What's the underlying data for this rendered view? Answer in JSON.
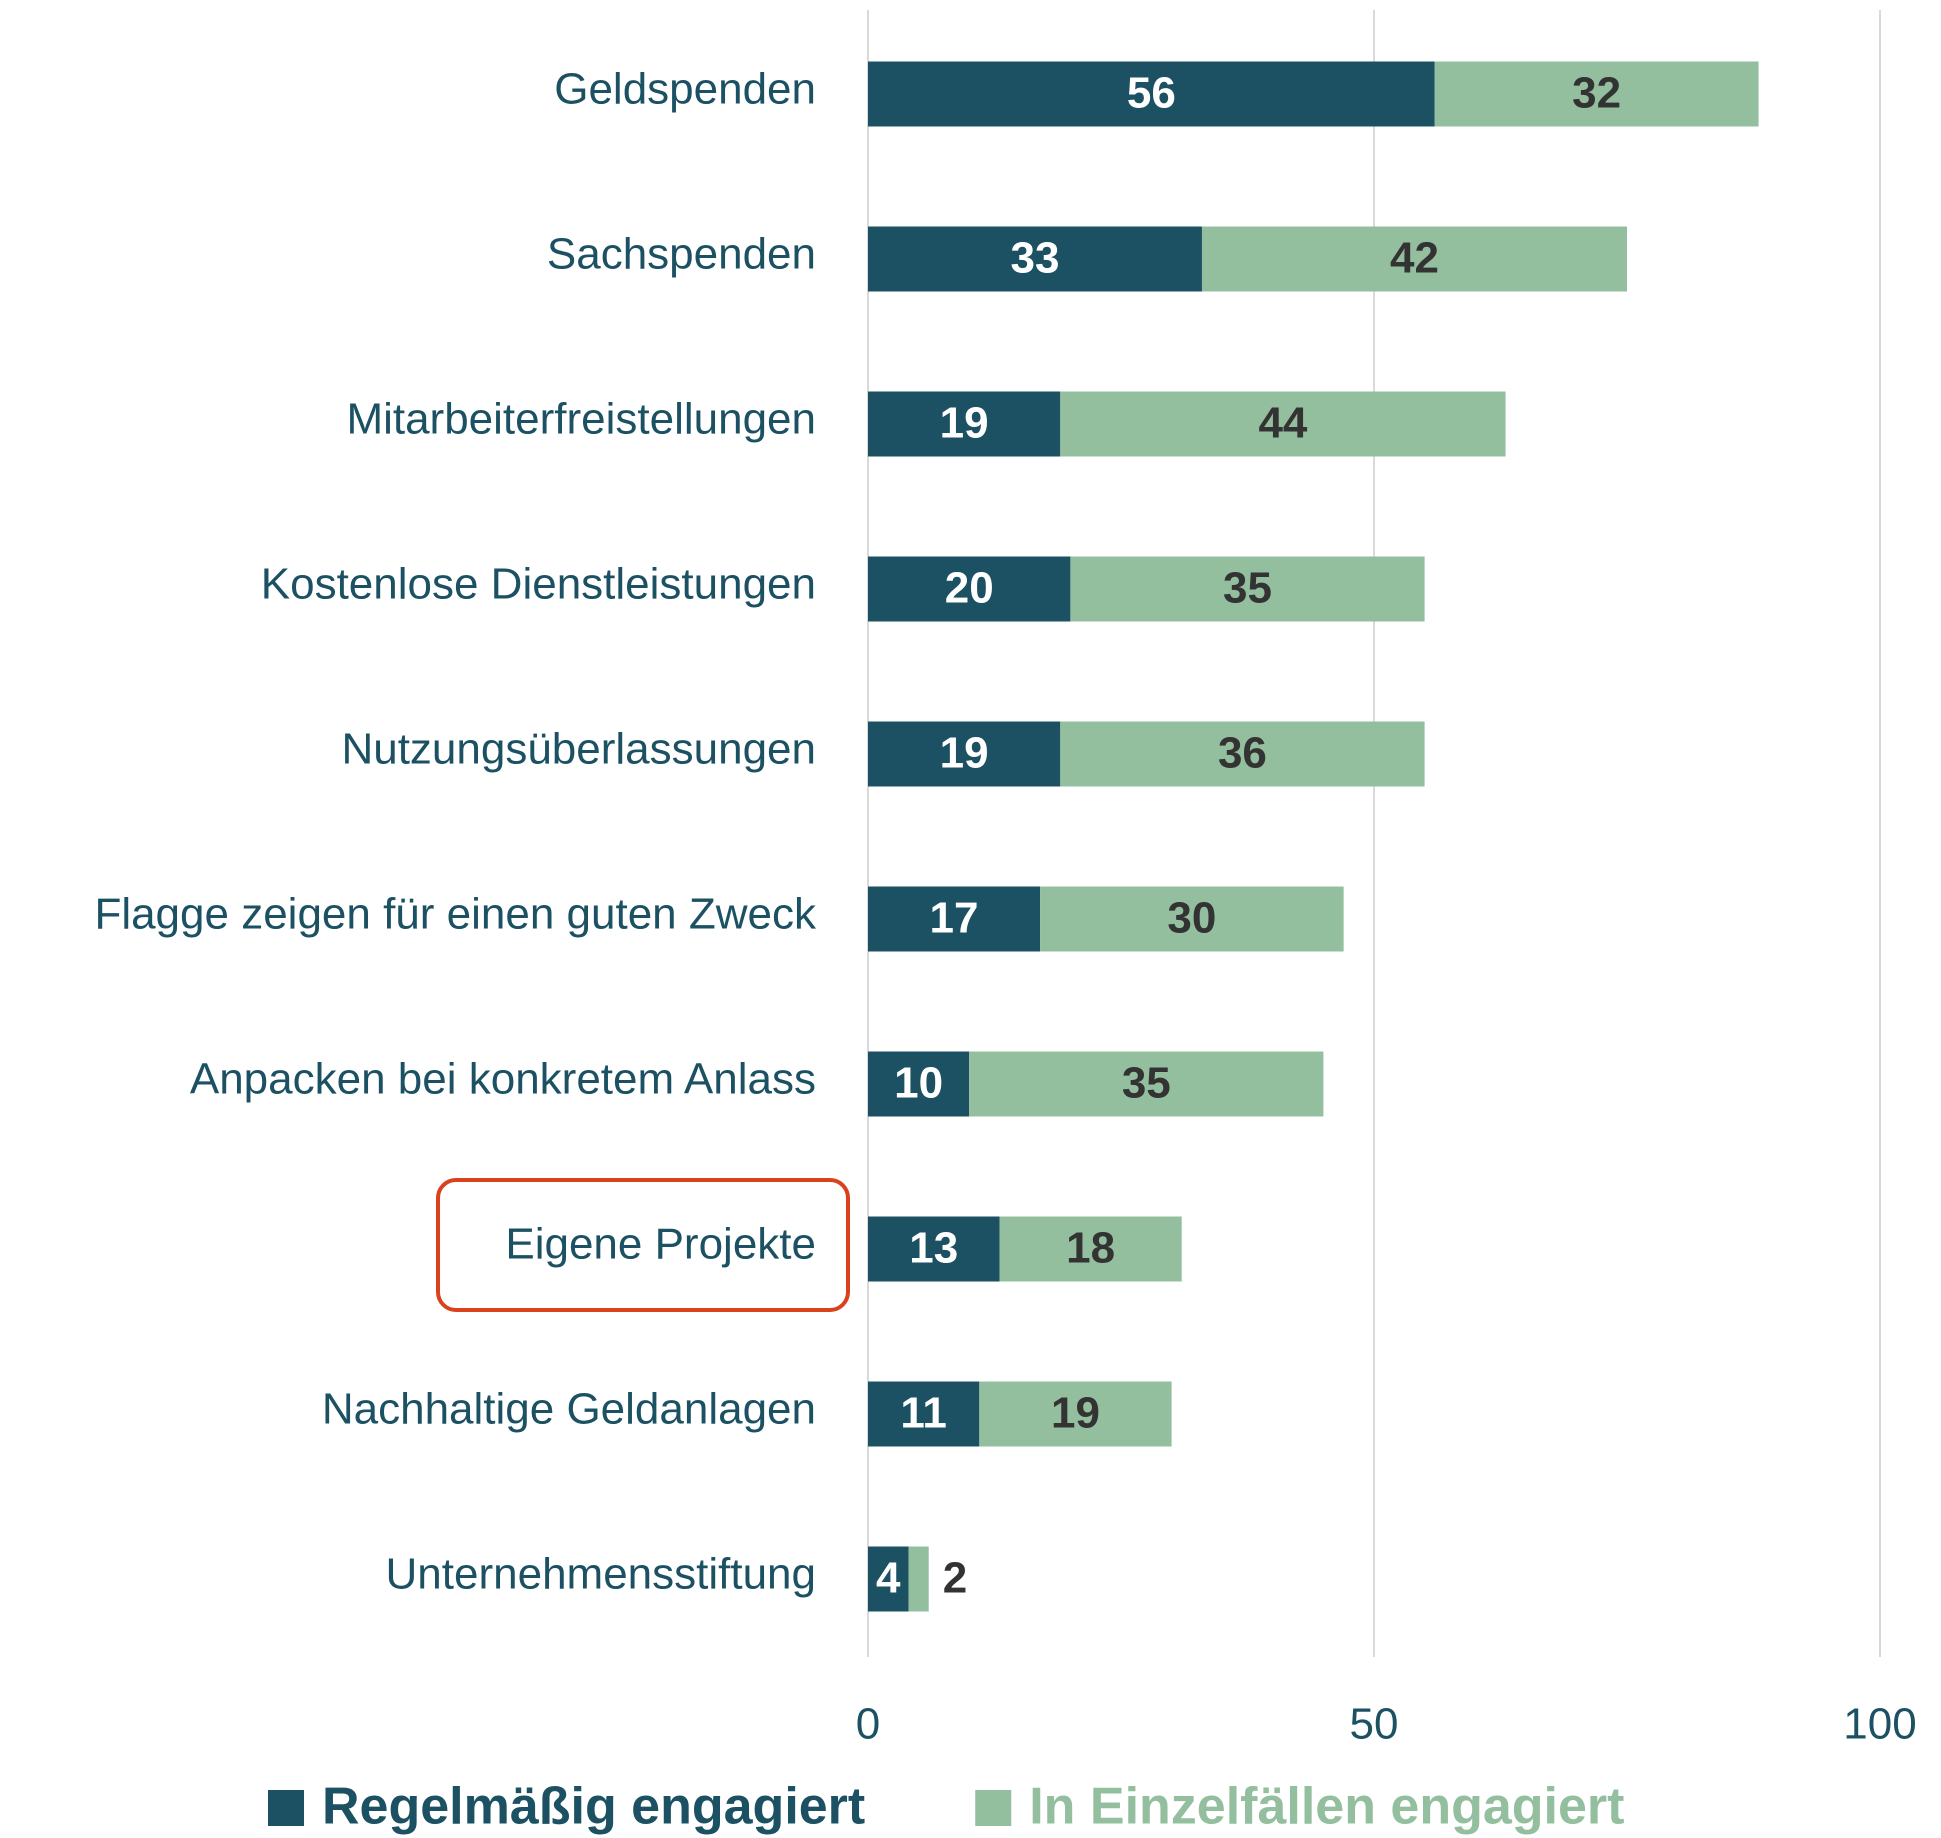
{
  "chart_data": {
    "type": "bar",
    "orientation": "horizontal",
    "stacked": true,
    "categories": [
      "Geldspenden",
      "Sachspenden",
      "Mitarbeiterfreistellungen",
      "Kostenlose Dienstleistungen",
      "Nutzungsüberlassungen",
      "Flagge zeigen für einen guten Zweck",
      "Anpacken bei konkretem Anlass",
      "Eigene Projekte",
      "Nachhaltige Geldanlagen",
      "Unternehmensstiftung"
    ],
    "series": [
      {
        "name": "Regelmäßig engagiert",
        "color": "#1c5163",
        "values": [
          56,
          33,
          19,
          20,
          19,
          17,
          10,
          13,
          11,
          4
        ]
      },
      {
        "name": "In Einzelfällen engagiert",
        "color": "#93bf9f",
        "values": [
          32,
          42,
          44,
          35,
          36,
          30,
          35,
          18,
          19,
          2
        ]
      }
    ],
    "xlim": [
      0,
      100
    ],
    "xticks": [
      0,
      50,
      100
    ],
    "grid": true,
    "legend": "bottom"
  }
}
